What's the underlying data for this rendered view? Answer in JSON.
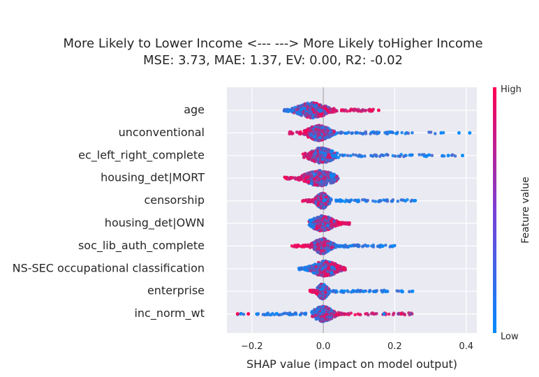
{
  "chart_data": {
    "type": "scatter",
    "subtype": "shap-beeswarm",
    "title": "More Likely to Lower Income <---   ---> More Likely toHigher Income",
    "subtitle": "MSE: 3.73, MAE: 1.37, EV: 0.00, R2: -0.02",
    "xlabel": "SHAP value (impact on model output)",
    "xlim": [
      -0.27,
      0.43
    ],
    "xticks": [
      -0.2,
      0.0,
      0.2,
      0.4
    ],
    "xtick_labels": [
      "−0.2",
      "0.0",
      "0.2",
      "0.4"
    ],
    "grid": true,
    "background": "#eaeaf2",
    "colorbar": {
      "title": "Feature value",
      "high_label": "High",
      "low_label": "Low",
      "low_color": "#008bfb",
      "high_color": "#ff0052"
    },
    "features": [
      {
        "name": "age",
        "min": -0.11,
        "max": 0.15,
        "core": [
          -0.06,
          0.0
        ],
        "right_tail_color": "high",
        "left_tail_color": "low",
        "outliers": [
          {
            "x": 0.135,
            "c": "high"
          },
          {
            "x": 0.155,
            "c": "high"
          }
        ]
      },
      {
        "name": "unconventional",
        "min": -0.095,
        "max": 0.42,
        "core": [
          -0.035,
          0.01
        ],
        "right_tail_color": "low",
        "left_tail_color": "high",
        "outliers": [
          {
            "x": 0.33,
            "c": "low"
          },
          {
            "x": 0.38,
            "c": "low"
          },
          {
            "x": 0.41,
            "c": "low"
          }
        ]
      },
      {
        "name": "ec_left_right_complete",
        "min": -0.06,
        "max": 0.39,
        "core": [
          -0.03,
          0.02
        ],
        "right_tail_color": "low",
        "left_tail_color": "high",
        "outliers": [
          {
            "x": 0.35,
            "c": "low"
          },
          {
            "x": 0.39,
            "c": "low"
          }
        ]
      },
      {
        "name": "housing_det|MORT",
        "min": -0.11,
        "max": 0.04,
        "core": [
          -0.04,
          0.02
        ],
        "right_tail_color": "low",
        "left_tail_color": "high",
        "outliers": [
          {
            "x": -0.105,
            "c": "high"
          }
        ]
      },
      {
        "name": "censorship",
        "min": -0.06,
        "max": 0.26,
        "core": [
          -0.015,
          0.01
        ],
        "right_tail_color": "low",
        "left_tail_color": "high",
        "outliers": [
          {
            "x": 0.255,
            "c": "low"
          }
        ]
      },
      {
        "name": "housing_det|OWN",
        "min": -0.04,
        "max": 0.075,
        "core": [
          -0.025,
          0.02
        ],
        "right_tail_color": "high",
        "left_tail_color": "low",
        "outliers": []
      },
      {
        "name": "soc_lib_auth_complete",
        "min": -0.09,
        "max": 0.2,
        "core": [
          -0.02,
          0.015
        ],
        "right_tail_color": "low",
        "left_tail_color": "high",
        "outliers": [
          {
            "x": 0.165,
            "c": "low"
          },
          {
            "x": 0.195,
            "c": "low"
          }
        ]
      },
      {
        "name": "NS-SEC occupational classification",
        "min": -0.07,
        "max": 0.065,
        "core": [
          -0.02,
          0.03
        ],
        "right_tail_color": "high",
        "left_tail_color": "low",
        "outliers": []
      },
      {
        "name": "enterprise",
        "min": -0.04,
        "max": 0.25,
        "core": [
          -0.012,
          0.008
        ],
        "right_tail_color": "low",
        "left_tail_color": "high",
        "outliers": [
          {
            "x": 0.22,
            "c": "low"
          },
          {
            "x": 0.25,
            "c": "low"
          }
        ]
      },
      {
        "name": "inc_norm_wt",
        "min": -0.24,
        "max": 0.25,
        "core": [
          -0.02,
          0.02
        ],
        "right_tail_color": "high",
        "left_tail_color": "low",
        "outliers": [
          {
            "x": -0.24,
            "c": "high"
          },
          {
            "x": -0.21,
            "c": "high"
          },
          {
            "x": -0.13,
            "c": "low"
          },
          {
            "x": 0.17,
            "c": "low"
          },
          {
            "x": 0.21,
            "c": "mix"
          },
          {
            "x": 0.245,
            "c": "mix"
          }
        ]
      }
    ]
  }
}
